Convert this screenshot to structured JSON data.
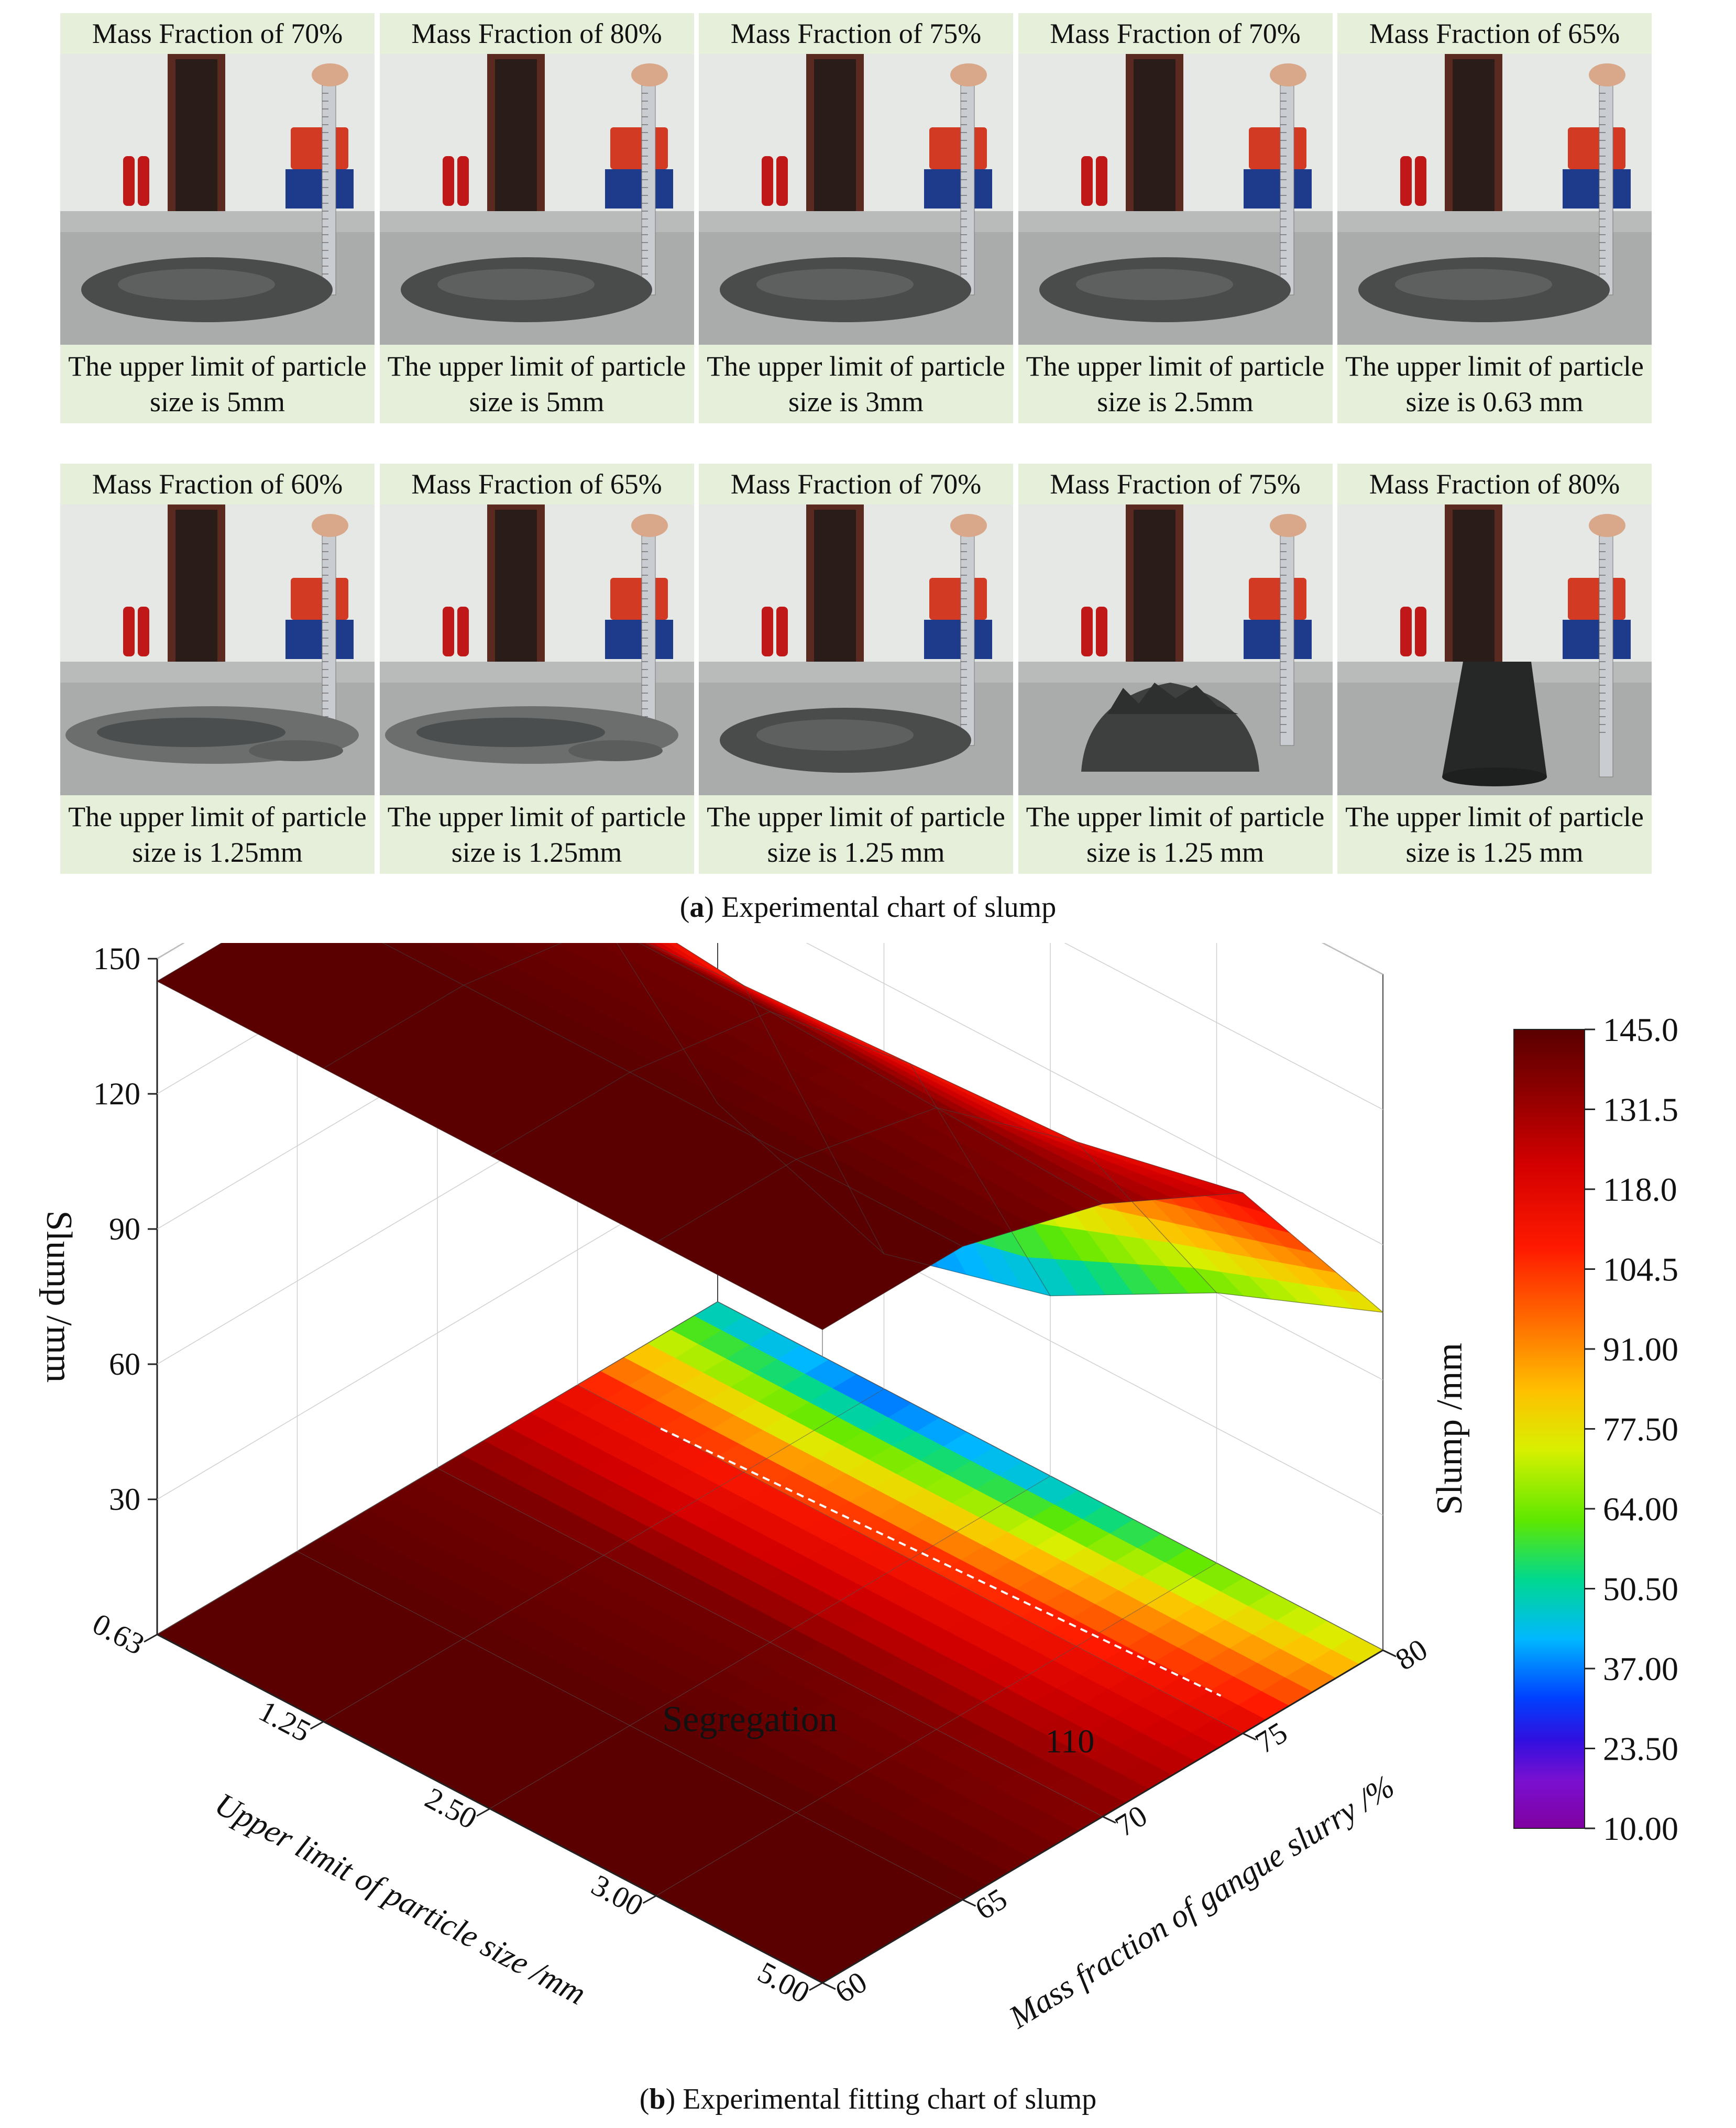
{
  "panel_a": {
    "caption_letter": "a",
    "caption_text": "Experimental chart of slump",
    "rows": [
      [
        {
          "header": "Mass Fraction of 70%",
          "footer": "The upper limit of particle size is 5mm",
          "state": "flow"
        },
        {
          "header": "Mass Fraction of 80%",
          "footer": "The upper limit of particle size is 5mm",
          "state": "flow"
        },
        {
          "header": "Mass Fraction of 75%",
          "footer": "The upper limit of particle size is 3mm",
          "state": "flow"
        },
        {
          "header": "Mass Fraction of 70%",
          "footer": "The upper limit of particle size is 2.5mm",
          "state": "flow"
        },
        {
          "header": "Mass Fraction of 65%",
          "footer": "The upper limit of particle size is 0.63 mm",
          "state": "flow"
        }
      ],
      [
        {
          "header": "Mass Fraction of 60%",
          "footer": "The upper limit of particle size is 1.25mm",
          "state": "segregation"
        },
        {
          "header": "Mass Fraction of 65%",
          "footer": "The upper limit of particle size is 1.25mm",
          "state": "segregation"
        },
        {
          "header": "Mass Fraction of 70%",
          "footer": "The upper limit of particle size is 1.25 mm",
          "state": "flow"
        },
        {
          "header": "Mass Fraction of 75%",
          "footer": "The upper limit of particle size is 1.25 mm",
          "state": "heap"
        },
        {
          "header": "Mass Fraction of 80%",
          "footer": "The upper limit of particle size is 1.25 mm",
          "state": "cone"
        }
      ]
    ]
  },
  "panel_b": {
    "caption_letter": "b",
    "caption_text": "Experimental fitting chart of slump",
    "annotation_contour": "110",
    "annotation_region": "Segregation"
  },
  "chart_data": {
    "type": "surface3d",
    "title": "",
    "x_label": "Upper limit of particle size /mm",
    "x_ticks": [
      "0.63",
      "1.25",
      "2.50",
      "3.00",
      "5.00"
    ],
    "y_label": "Mass fraction of gangue slurry /%",
    "y_ticks": [
      "60",
      "65",
      "70",
      "75",
      "80"
    ],
    "z_label": "Slump /mm",
    "z_ticks": [
      "30",
      "60",
      "90",
      "120",
      "150"
    ],
    "z_range": [
      10,
      150
    ],
    "colorbar": {
      "label": "Slump /mm",
      "ticks": [
        "145.0",
        "131.5",
        "118.0",
        "104.5",
        "91.00",
        "77.50",
        "64.00",
        "50.50",
        "37.00",
        "23.50",
        "10.00"
      ],
      "range": [
        10,
        145
      ],
      "colors": [
        "#5a0000",
        "#8b0000",
        "#d40000",
        "#ff1a00",
        "#ff6a00",
        "#ffc000",
        "#d8f000",
        "#5ee800",
        "#00d890",
        "#00b8ff",
        "#0040ff",
        "#3010e0",
        "#7a10d0",
        "#8000a0"
      ]
    },
    "x": [
      0.63,
      1.25,
      2.5,
      3.0,
      5.0
    ],
    "y": [
      60,
      65,
      70,
      75,
      80
    ],
    "z": [
      [
        145,
        145,
        145,
        145,
        145
      ],
      [
        145,
        145,
        145,
        145,
        145
      ],
      [
        140,
        140,
        140,
        138,
        136
      ],
      [
        112,
        108,
        110,
        112,
        120
      ],
      [
        44,
        30,
        40,
        60,
        75
      ]
    ],
    "segregation_values": [
      145
    ],
    "contour_level": 110
  }
}
